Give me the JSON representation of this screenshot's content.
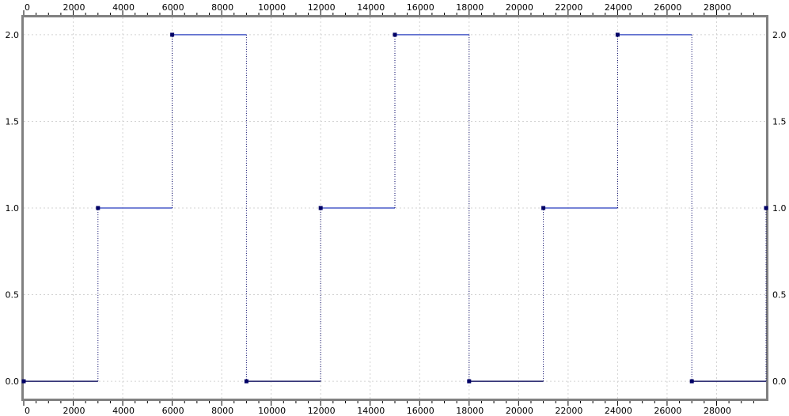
{
  "chart_data": {
    "type": "line",
    "title": "",
    "xlabel": "",
    "ylabel": "",
    "xlim": [
      0,
      30000
    ],
    "ylim": [
      -0.1,
      2.1
    ],
    "x_ticks": [
      0,
      2000,
      4000,
      6000,
      8000,
      10000,
      12000,
      14000,
      16000,
      18000,
      20000,
      22000,
      24000,
      26000,
      28000
    ],
    "x_tick_labels": [
      "0",
      "2000",
      "4000",
      "6000",
      "8000",
      "10000",
      "12000",
      "14000",
      "16000",
      "18000",
      "20000",
      "22000",
      "24000",
      "26000",
      "28000"
    ],
    "y_ticks": [
      0.0,
      0.5,
      1.0,
      1.5,
      2.0
    ],
    "y_tick_labels": [
      "0.0",
      "0.5",
      "1.0",
      "1.5",
      "2.0"
    ],
    "grid": true,
    "step": "post",
    "series": [
      {
        "color": "#4a5cc8",
        "marker_color": "#000066",
        "x": [
          0,
          3000,
          6000,
          9000,
          12000,
          15000,
          18000,
          21000,
          24000,
          27000,
          30000
        ],
        "y": [
          0,
          1,
          2,
          0,
          1,
          2,
          0,
          1,
          2,
          0,
          1
        ]
      }
    ],
    "frame_color": "#808080",
    "grid_color": "#d3d3d3"
  }
}
